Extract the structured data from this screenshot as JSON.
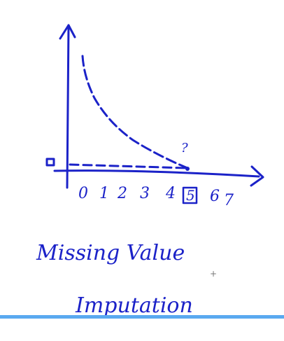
{
  "drawing": {
    "x_ticks": [
      "0",
      "1",
      "2",
      "3",
      "4",
      "5",
      "6",
      "7"
    ],
    "question_mark": "?",
    "caption_line1": "Missing Value",
    "caption_line2": "Imputation",
    "cursor_glyph": "+"
  },
  "colors": {
    "ink": "#1b22c8",
    "bottom_bar": "#5aa9f0"
  }
}
